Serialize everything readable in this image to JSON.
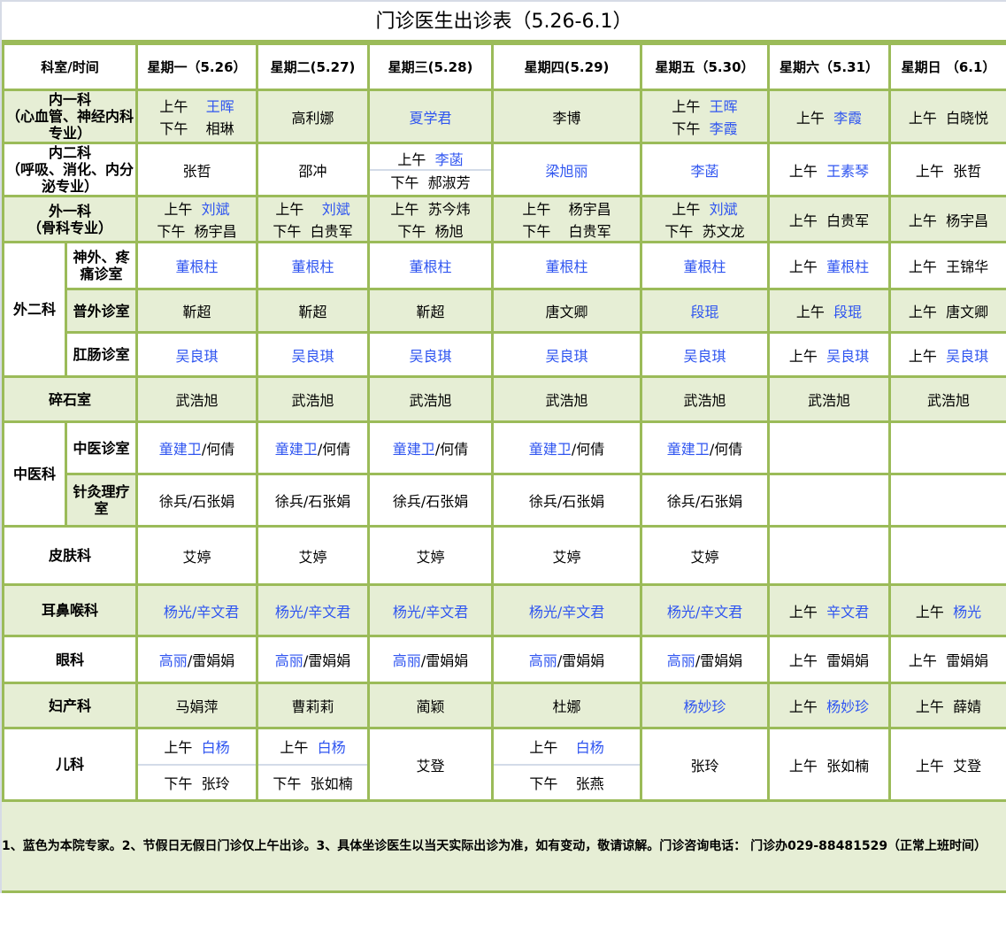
{
  "title": "门诊医生出诊表（5.26-6.1）",
  "header": {
    "corner": "科室/时间",
    "days": [
      "星期一（5.26）",
      "星期二(5.27)",
      "星期三(5.28)",
      "星期四(5.29)",
      "星期五（5.30）",
      "星期六（5.31）",
      "星期日 （6.1）"
    ]
  },
  "colors": {
    "border": "#9bbb59",
    "shade": "#e6eed5",
    "expert_blue": "#2f55f0"
  },
  "departments": [
    {
      "name": "内一科\n（心血管、神经内科专业）",
      "shade": true,
      "cells": [
        {
          "lines": [
            [
              "上午    ",
              {
                "blue": "王晖"
              }
            ],
            [
              "下午    相琳"
            ]
          ]
        },
        {
          "lines": [
            [
              "高利娜"
            ]
          ]
        },
        {
          "lines": [
            [
              {
                "blue": "夏学君"
              }
            ]
          ]
        },
        {
          "lines": [
            [
              "李博"
            ]
          ]
        },
        {
          "lines": [
            [
              "上午  ",
              {
                "blue": "王晖"
              }
            ],
            [
              "下午  ",
              {
                "blue": "李霞"
              }
            ]
          ]
        },
        {
          "lines": [
            [
              "上午  ",
              {
                "blue": "李霞"
              }
            ]
          ]
        },
        {
          "lines": [
            [
              "上午  白晓悦"
            ]
          ]
        }
      ]
    },
    {
      "name": "内二科\n（呼吸、消化、内分泌专业）",
      "shade": false,
      "cells": [
        {
          "lines": [
            [
              "张哲"
            ]
          ]
        },
        {
          "lines": [
            [
              "邵冲"
            ]
          ]
        },
        {
          "lines": [
            [
              "上午  ",
              {
                "blue": "李菡"
              }
            ],
            [
              "下午  郝淑芳"
            ]
          ],
          "split": true
        },
        {
          "lines": [
            [
              {
                "blue": "梁旭丽"
              }
            ]
          ]
        },
        {
          "lines": [
            [
              {
                "blue": "李菡"
              }
            ]
          ]
        },
        {
          "lines": [
            [
              "上午  ",
              {
                "blue": "王素琴"
              }
            ]
          ]
        },
        {
          "lines": [
            [
              "上午  张哲"
            ]
          ]
        }
      ]
    },
    {
      "name": "外一科\n（骨科专业）",
      "shade": true,
      "cells": [
        {
          "lines": [
            [
              "上午  ",
              {
                "blue": "刘斌"
              }
            ],
            [
              "下午  杨宇昌"
            ]
          ]
        },
        {
          "lines": [
            [
              "上午    ",
              {
                "blue": "刘斌"
              }
            ],
            [
              "下午  白贵军"
            ]
          ]
        },
        {
          "lines": [
            [
              "上午  苏今炜"
            ],
            [
              "下午  杨旭"
            ]
          ]
        },
        {
          "lines": [
            [
              "上午    杨宇昌"
            ],
            [
              "下午    白贵军"
            ]
          ]
        },
        {
          "lines": [
            [
              "上午  ",
              {
                "blue": "刘斌"
              }
            ],
            [
              "下午  苏文龙"
            ]
          ]
        },
        {
          "lines": [
            [
              "上午  白贵军"
            ]
          ]
        },
        {
          "lines": [
            [
              "上午  杨宇昌"
            ]
          ]
        }
      ]
    },
    {
      "name": "外二科",
      "group": true,
      "subs": [
        {
          "name": "神外、疼痛诊室",
          "shade": false,
          "cells": [
            {
              "lines": [
                [
                  {
                    "blue": "董根柱"
                  }
                ]
              ]
            },
            {
              "lines": [
                [
                  {
                    "blue": "董根柱"
                  }
                ]
              ]
            },
            {
              "lines": [
                [
                  {
                    "blue": "董根柱"
                  }
                ]
              ]
            },
            {
              "lines": [
                [
                  {
                    "blue": "董根柱"
                  }
                ]
              ]
            },
            {
              "lines": [
                [
                  {
                    "blue": "董根柱"
                  }
                ]
              ]
            },
            {
              "lines": [
                [
                  "上午  ",
                  {
                    "blue": "董根柱"
                  }
                ]
              ]
            },
            {
              "lines": [
                [
                  "上午  王锦华"
                ]
              ]
            }
          ]
        },
        {
          "name": "普外诊室",
          "shade": true,
          "cells": [
            {
              "lines": [
                [
                  "靳超"
                ]
              ]
            },
            {
              "lines": [
                [
                  "靳超"
                ]
              ]
            },
            {
              "lines": [
                [
                  "靳超"
                ]
              ]
            },
            {
              "lines": [
                [
                  "唐文卿"
                ]
              ]
            },
            {
              "lines": [
                [
                  {
                    "blue": "段琨"
                  }
                ]
              ]
            },
            {
              "lines": [
                [
                  "上午  ",
                  {
                    "blue": "段琨"
                  }
                ]
              ]
            },
            {
              "lines": [
                [
                  "上午  唐文卿"
                ]
              ]
            }
          ]
        },
        {
          "name": "肛肠诊室",
          "shade": false,
          "cells": [
            {
              "lines": [
                [
                  {
                    "blue": "吴良琪"
                  }
                ]
              ]
            },
            {
              "lines": [
                [
                  {
                    "blue": "吴良琪"
                  }
                ]
              ]
            },
            {
              "lines": [
                [
                  {
                    "blue": "吴良琪"
                  }
                ]
              ]
            },
            {
              "lines": [
                [
                  {
                    "blue": "吴良琪"
                  }
                ]
              ]
            },
            {
              "lines": [
                [
                  {
                    "blue": "吴良琪"
                  }
                ]
              ]
            },
            {
              "lines": [
                [
                  "上午  ",
                  {
                    "blue": "吴良琪"
                  }
                ]
              ]
            },
            {
              "lines": [
                [
                  "上午  ",
                  {
                    "blue": "吴良琪"
                  }
                ]
              ]
            }
          ]
        }
      ]
    },
    {
      "name": "碎石室",
      "shade": true,
      "cells": [
        {
          "lines": [
            [
              "武浩旭"
            ]
          ]
        },
        {
          "lines": [
            [
              "武浩旭"
            ]
          ]
        },
        {
          "lines": [
            [
              "武浩旭"
            ]
          ]
        },
        {
          "lines": [
            [
              "武浩旭"
            ]
          ]
        },
        {
          "lines": [
            [
              "武浩旭"
            ]
          ]
        },
        {
          "lines": [
            [
              "武浩旭"
            ]
          ]
        },
        {
          "lines": [
            [
              "武浩旭"
            ]
          ]
        }
      ]
    },
    {
      "name": "中医科",
      "group": true,
      "subs": [
        {
          "name": "中医诊室",
          "shade": false,
          "cells": [
            {
              "lines": [
                [
                  {
                    "blue": "童建卫"
                  },
                  "/何倩"
                ]
              ]
            },
            {
              "lines": [
                [
                  {
                    "blue": "童建卫"
                  },
                  "/何倩"
                ]
              ]
            },
            {
              "lines": [
                [
                  {
                    "blue": "童建卫"
                  },
                  "/何倩"
                ]
              ]
            },
            {
              "lines": [
                [
                  {
                    "blue": "童建卫"
                  },
                  "/何倩"
                ]
              ]
            },
            {
              "lines": [
                [
                  {
                    "blue": "童建卫"
                  },
                  "/何倩"
                ]
              ]
            },
            {
              "lines": []
            },
            {
              "lines": []
            }
          ]
        },
        {
          "name": "针灸理疗室",
          "shade": false,
          "label_shade": true,
          "cells": [
            {
              "lines": [
                [
                  "徐兵/石张娟"
                ]
              ]
            },
            {
              "lines": [
                [
                  "徐兵/石张娟"
                ]
              ]
            },
            {
              "lines": [
                [
                  "徐兵/石张娟"
                ]
              ]
            },
            {
              "lines": [
                [
                  "徐兵/石张娟"
                ]
              ]
            },
            {
              "lines": [
                [
                  "徐兵/石张娟"
                ]
              ]
            },
            {
              "lines": []
            },
            {
              "lines": []
            }
          ]
        }
      ]
    },
    {
      "name": "皮肤科",
      "shade": false,
      "cells": [
        {
          "lines": [
            [
              "艾婷"
            ]
          ]
        },
        {
          "lines": [
            [
              "艾婷"
            ]
          ]
        },
        {
          "lines": [
            [
              "艾婷"
            ]
          ]
        },
        {
          "lines": [
            [
              "艾婷"
            ]
          ]
        },
        {
          "lines": [
            [
              "艾婷"
            ]
          ]
        },
        {
          "lines": []
        },
        {
          "lines": []
        }
      ]
    },
    {
      "name": "耳鼻喉科",
      "shade": true,
      "cells": [
        {
          "lines": [
            [
              "  ",
              {
                "blue": "杨光/辛文君"
              }
            ]
          ]
        },
        {
          "lines": [
            [
              {
                "blue": "杨光/辛文君"
              }
            ]
          ]
        },
        {
          "lines": [
            [
              {
                "blue": "杨光/辛文君"
              }
            ]
          ]
        },
        {
          "lines": [
            [
              {
                "blue": "杨光/辛文君"
              }
            ]
          ]
        },
        {
          "lines": [
            [
              {
                "blue": "杨光/辛文君"
              }
            ]
          ]
        },
        {
          "lines": [
            [
              "上午  ",
              {
                "blue": "辛文君"
              }
            ]
          ]
        },
        {
          "lines": [
            [
              "上午  ",
              {
                "blue": "杨光"
              }
            ]
          ]
        }
      ]
    },
    {
      "name": "眼科",
      "shade": false,
      "cells": [
        {
          "lines": [
            [
              {
                "blue": "高丽"
              },
              "/雷娟娟"
            ]
          ]
        },
        {
          "lines": [
            [
              {
                "blue": "高丽"
              },
              "/雷娟娟"
            ]
          ]
        },
        {
          "lines": [
            [
              {
                "blue": "高丽"
              },
              "/雷娟娟"
            ]
          ]
        },
        {
          "lines": [
            [
              {
                "blue": "高丽"
              },
              "/雷娟娟"
            ]
          ]
        },
        {
          "lines": [
            [
              {
                "blue": "高丽"
              },
              "/雷娟娟"
            ]
          ]
        },
        {
          "lines": [
            [
              "上午  雷娟娟"
            ]
          ]
        },
        {
          "lines": [
            [
              "上午  雷娟娟"
            ]
          ]
        }
      ]
    },
    {
      "name": "妇产科",
      "shade": true,
      "cells": [
        {
          "lines": [
            [
              "马娟萍"
            ]
          ]
        },
        {
          "lines": [
            [
              "曹莉莉"
            ]
          ]
        },
        {
          "lines": [
            [
              "蔺颖"
            ]
          ]
        },
        {
          "lines": [
            [
              "杜娜"
            ]
          ]
        },
        {
          "lines": [
            [
              {
                "blue": "杨妙珍"
              }
            ]
          ]
        },
        {
          "lines": [
            [
              "上午  ",
              {
                "blue": "杨妙珍"
              }
            ]
          ]
        },
        {
          "lines": [
            [
              "上午  薛婧"
            ]
          ]
        }
      ]
    },
    {
      "name": "儿科",
      "shade": false,
      "cells": [
        {
          "lines": [
            [
              "上午  ",
              {
                "blue": "白杨"
              }
            ],
            [
              "下午  张玲"
            ]
          ],
          "split": true
        },
        {
          "lines": [
            [
              "上午  ",
              {
                "blue": "白杨"
              }
            ],
            [
              "下午  张如楠"
            ]
          ],
          "split": true
        },
        {
          "lines": [
            [
              "艾登"
            ]
          ]
        },
        {
          "lines": [
            [
              "上午    ",
              {
                "blue": "白杨"
              }
            ],
            [
              "下午    张燕"
            ]
          ],
          "split": true
        },
        {
          "lines": [
            [
              "张玲"
            ]
          ]
        },
        {
          "lines": [
            [
              "上午  张如楠"
            ]
          ]
        },
        {
          "lines": [
            [
              "上午  艾登"
            ]
          ]
        }
      ]
    }
  ],
  "notes": "1、蓝色为本院专家。2、节假日无假日门诊仅上午出诊。3、具体坐诊医生以当天实际出诊为准，如有变动，敬请谅解。门诊咨询电话： 门诊办029-88481529（正常上班时间）"
}
